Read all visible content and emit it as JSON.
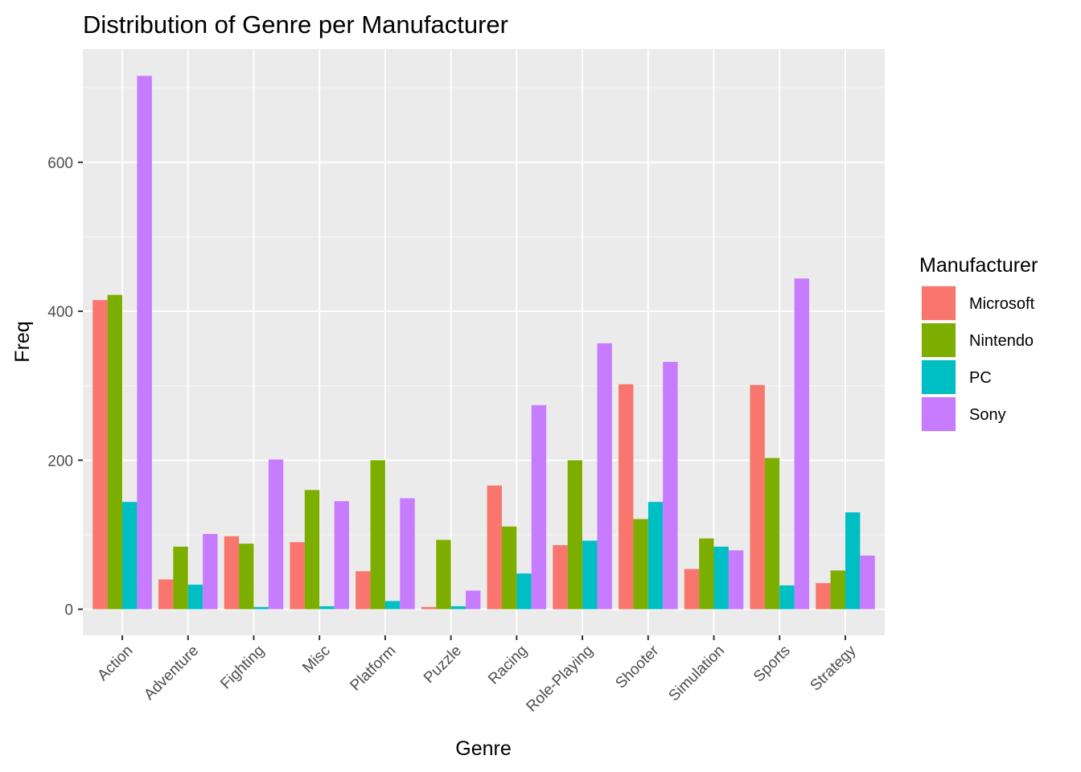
{
  "chart_data": {
    "type": "bar",
    "title": "Distribution of Genre per Manufacturer",
    "xlabel": "Genre",
    "ylabel": "Freq",
    "categories": [
      "Action",
      "Adventure",
      "Fighting",
      "Misc",
      "Platform",
      "Puzzle",
      "Racing",
      "Role-Playing",
      "Shooter",
      "Simulation",
      "Sports",
      "Strategy"
    ],
    "series": [
      {
        "name": "Microsoft",
        "color": "#F8766D",
        "values": [
          415,
          40,
          98,
          90,
          51,
          3,
          166,
          86,
          302,
          54,
          301,
          35
        ]
      },
      {
        "name": "Nintendo",
        "color": "#7CAE00",
        "values": [
          422,
          84,
          88,
          160,
          200,
          93,
          111,
          200,
          121,
          95,
          203,
          52
        ]
      },
      {
        "name": "PC",
        "color": "#00BFC4",
        "values": [
          144,
          33,
          3,
          4,
          11,
          4,
          48,
          92,
          144,
          84,
          32,
          130
        ]
      },
      {
        "name": "Sony",
        "color": "#C77CFF",
        "values": [
          716,
          101,
          201,
          145,
          149,
          25,
          274,
          357,
          332,
          79,
          444,
          72
        ]
      }
    ],
    "ylim": [
      -35,
      752
    ],
    "yticks": [
      0,
      200,
      400,
      600
    ],
    "legend": {
      "title": "Manufacturer",
      "placement": "right"
    },
    "grid": true,
    "panel_background": "#EBEBEB",
    "grid_color": "#FFFFFF"
  }
}
